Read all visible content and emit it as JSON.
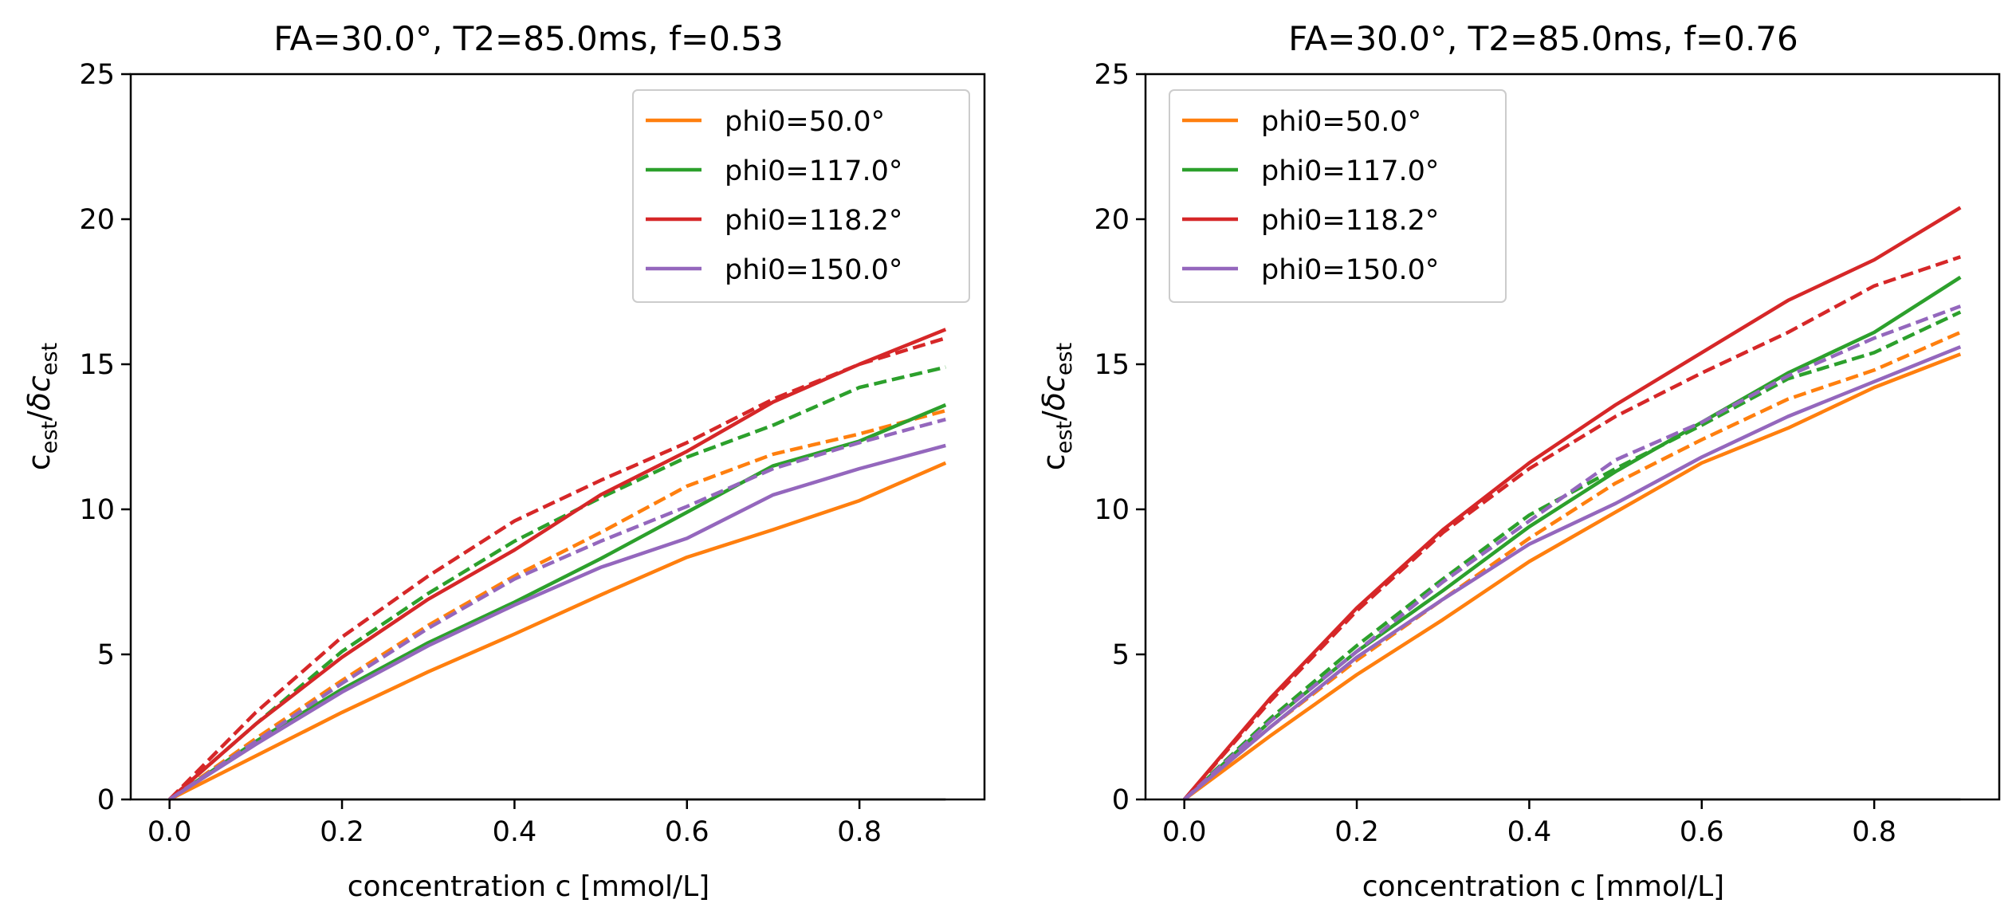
{
  "chart_data": [
    {
      "type": "line",
      "title": "FA=30.0°, T2=85.0ms, f=0.53",
      "xlabel": "concentration c [mmol/L]",
      "ylabel": "c_est/δc_est",
      "xlim": [
        -0.045,
        0.945
      ],
      "ylim": [
        0,
        25
      ],
      "xticks": [
        0.0,
        0.2,
        0.4,
        0.6,
        0.8
      ],
      "xtick_labels": [
        "0.0",
        "0.2",
        "0.4",
        "0.6",
        "0.8"
      ],
      "yticks": [
        0,
        5,
        10,
        15,
        20,
        25
      ],
      "ytick_labels": [
        "0",
        "5",
        "10",
        "15",
        "20",
        "25"
      ],
      "legend_position": "top-right",
      "x": [
        0.0,
        0.1,
        0.2,
        0.3,
        0.4,
        0.5,
        0.6,
        0.7,
        0.8,
        0.9
      ],
      "series": [
        {
          "name": "phi0=50.0°",
          "color": "#ff7f0e",
          "style": "solid",
          "values": [
            0,
            1.5,
            3.0,
            4.4,
            5.7,
            7.05,
            8.35,
            9.3,
            10.3,
            11.6
          ]
        },
        {
          "name": "phi0=50.0°",
          "color": "#ff7f0e",
          "style": "dashed",
          "legend": false,
          "values": [
            0,
            2.1,
            4.1,
            6.0,
            7.7,
            9.2,
            10.8,
            11.9,
            12.6,
            13.4
          ]
        },
        {
          "name": "phi0=117.0°",
          "color": "#2ca02c",
          "style": "solid",
          "values": [
            0,
            2.0,
            3.8,
            5.4,
            6.8,
            8.3,
            9.9,
            11.5,
            12.35,
            13.6
          ]
        },
        {
          "name": "phi0=117.0°",
          "color": "#2ca02c",
          "style": "dashed",
          "legend": false,
          "values": [
            0,
            2.6,
            5.1,
            7.1,
            8.9,
            10.4,
            11.8,
            12.9,
            14.2,
            14.9
          ]
        },
        {
          "name": "phi0=118.2°",
          "color": "#d62728",
          "style": "solid",
          "values": [
            0,
            2.6,
            4.9,
            6.9,
            8.6,
            10.5,
            12.0,
            13.7,
            15.0,
            16.2
          ]
        },
        {
          "name": "phi0=118.2°",
          "color": "#d62728",
          "style": "dashed",
          "legend": false,
          "values": [
            0,
            3.0,
            5.6,
            7.7,
            9.6,
            11.0,
            12.3,
            13.8,
            15.0,
            15.9
          ]
        },
        {
          "name": "phi0=150.0°",
          "color": "#9467bd",
          "style": "solid",
          "values": [
            0,
            1.9,
            3.7,
            5.3,
            6.7,
            8.0,
            9.0,
            10.5,
            11.4,
            12.2
          ]
        },
        {
          "name": "phi0=150.0°",
          "color": "#9467bd",
          "style": "dashed",
          "legend": false,
          "values": [
            0,
            2.0,
            4.0,
            5.9,
            7.6,
            8.9,
            10.1,
            11.4,
            12.3,
            13.1
          ]
        }
      ]
    },
    {
      "type": "line",
      "title": "FA=30.0°, T2=85.0ms, f=0.76",
      "xlabel": "concentration c [mmol/L]",
      "ylabel": "c_est/δc_est",
      "xlim": [
        -0.045,
        0.945
      ],
      "ylim": [
        0,
        25
      ],
      "xticks": [
        0.0,
        0.2,
        0.4,
        0.6,
        0.8
      ],
      "xtick_labels": [
        "0.0",
        "0.2",
        "0.4",
        "0.6",
        "0.8"
      ],
      "yticks": [
        0,
        5,
        10,
        15,
        20,
        25
      ],
      "ytick_labels": [
        "0",
        "5",
        "10",
        "15",
        "20",
        "25"
      ],
      "legend_position": "top-left",
      "x": [
        0.0,
        0.1,
        0.2,
        0.3,
        0.4,
        0.5,
        0.6,
        0.7,
        0.8,
        0.9
      ],
      "series": [
        {
          "name": "phi0=50.0°",
          "color": "#ff7f0e",
          "style": "solid",
          "values": [
            0,
            2.2,
            4.3,
            6.2,
            8.2,
            9.9,
            11.6,
            12.8,
            14.2,
            15.35
          ]
        },
        {
          "name": "phi0=50.0°",
          "color": "#ff7f0e",
          "style": "dashed",
          "legend": false,
          "values": [
            0,
            2.5,
            4.8,
            6.9,
            9.0,
            10.9,
            12.4,
            13.8,
            14.8,
            16.1
          ]
        },
        {
          "name": "phi0=117.0°",
          "color": "#2ca02c",
          "style": "solid",
          "values": [
            0,
            2.7,
            5.1,
            7.2,
            9.4,
            11.3,
            13.0,
            14.7,
            16.1,
            18.0
          ]
        },
        {
          "name": "phi0=117.0°",
          "color": "#2ca02c",
          "style": "dashed",
          "legend": false,
          "values": [
            0,
            2.8,
            5.3,
            7.6,
            9.8,
            11.4,
            12.9,
            14.5,
            15.4,
            16.8
          ]
        },
        {
          "name": "phi0=118.2°",
          "color": "#d62728",
          "style": "solid",
          "values": [
            0,
            3.5,
            6.6,
            9.3,
            11.6,
            13.6,
            15.4,
            17.2,
            18.6,
            20.4
          ]
        },
        {
          "name": "phi0=118.2°",
          "color": "#d62728",
          "style": "dashed",
          "legend": false,
          "values": [
            0,
            3.4,
            6.5,
            9.2,
            11.4,
            13.2,
            14.7,
            16.1,
            17.7,
            18.7
          ]
        },
        {
          "name": "phi0=150.0°",
          "color": "#9467bd",
          "style": "solid",
          "values": [
            0,
            2.5,
            4.9,
            6.9,
            8.8,
            10.2,
            11.8,
            13.2,
            14.4,
            15.6
          ]
        },
        {
          "name": "phi0=150.0°",
          "color": "#9467bd",
          "style": "dashed",
          "legend": false,
          "values": [
            0,
            2.7,
            5.1,
            7.5,
            9.6,
            11.7,
            13.0,
            14.6,
            15.9,
            17.0
          ]
        }
      ]
    }
  ]
}
